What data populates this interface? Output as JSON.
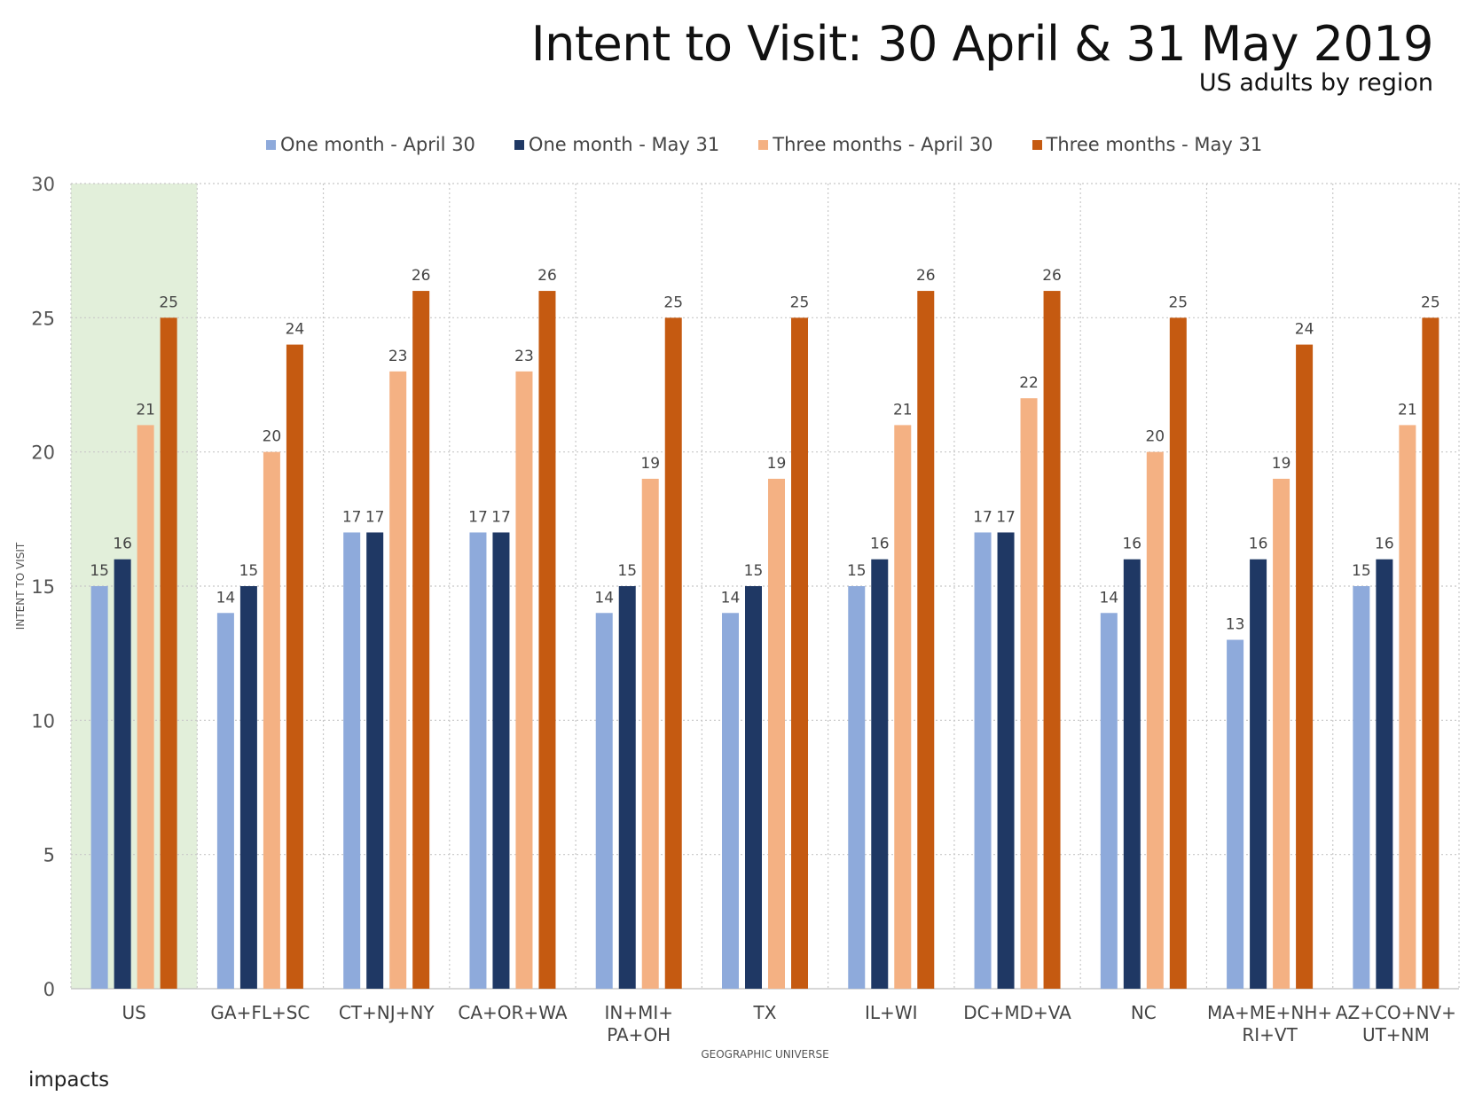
{
  "header": {
    "title": "Intent to Visit: 30 April & 31 May 2019",
    "subtitle": "US adults by region"
  },
  "brand": {
    "logo_text": "impacts"
  },
  "chart_data": {
    "type": "bar",
    "title": "Intent to Visit: 30 April & 31 May 2019",
    "subtitle": "US adults by region",
    "xlabel": "GEOGRAPHIC UNIVERSE",
    "ylabel": "INTENT TO VISIT",
    "ylim": [
      0,
      30
    ],
    "yticks": [
      0,
      5,
      10,
      15,
      20,
      25,
      30
    ],
    "grid": true,
    "legend_position": "top",
    "highlighted_category": "US",
    "highlight_color": "#e2efda",
    "categories": [
      "US",
      "GA+FL+SC",
      "CT+NJ+NY",
      "CA+OR+WA",
      "IN+MI+\nPA+OH",
      "TX",
      "IL+WI",
      "DC+MD+VA",
      "NC",
      "MA+ME+NH+\nRI+VT",
      "AZ+CO+NV+\nUT+NM"
    ],
    "series": [
      {
        "name": "One month - April 30",
        "color": "#8eaadb",
        "values": [
          15,
          14,
          17,
          17,
          14,
          14,
          15,
          17,
          14,
          13,
          15
        ]
      },
      {
        "name": "One month - May 31",
        "color": "#1f3864",
        "values": [
          16,
          15,
          17,
          17,
          15,
          15,
          16,
          17,
          16,
          16,
          16
        ]
      },
      {
        "name": "Three months - April 30",
        "color": "#f4b183",
        "values": [
          21,
          20,
          23,
          23,
          19,
          19,
          21,
          22,
          20,
          19,
          21
        ]
      },
      {
        "name": "Three months - May 31",
        "color": "#c55a11",
        "values": [
          25,
          24,
          26,
          26,
          25,
          25,
          26,
          26,
          25,
          24,
          25
        ]
      }
    ]
  }
}
